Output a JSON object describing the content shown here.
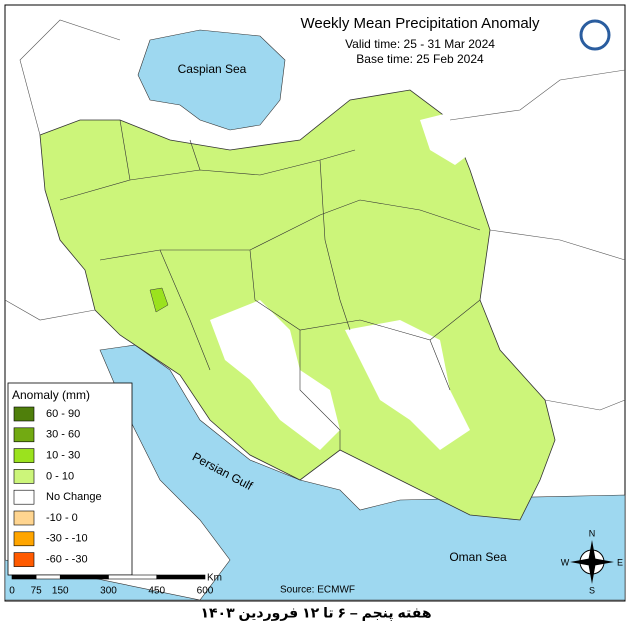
{
  "header": {
    "title": "Weekly Mean Precipitation Anomaly",
    "valid_time": "Valid time:  25 - 31 Mar 2024",
    "base_time": "Base time: 25 Feb 2024"
  },
  "map": {
    "labels": [
      "Caspian Sea",
      "Persian Gulf",
      "Oman Sea"
    ]
  },
  "legend": {
    "title": "Anomaly (mm)",
    "items": [
      {
        "label": "60 - 90",
        "color": "#4f7f0b"
      },
      {
        "label": "30 - 60",
        "color": "#72aa12"
      },
      {
        "label": "10 - 30",
        "color": "#9be21e"
      },
      {
        "label": "0 - 10",
        "color": "#ccf57a"
      },
      {
        "label": "No Change",
        "color": "#ffffff"
      },
      {
        "label": "-10 - 0",
        "color": "#ffd590"
      },
      {
        "label": "-30 - -10",
        "color": "#ffa500"
      },
      {
        "label": "-60 - -30",
        "color": "#ff5a00"
      }
    ]
  },
  "scale_bar": {
    "ticks": [
      0,
      75,
      150,
      300,
      450,
      600
    ],
    "unit": "Km"
  },
  "compass": [
    "N",
    "E",
    "S",
    "W"
  ],
  "source": "Source: ECMWF",
  "footer": "هفته پنجم – ۶ تا ۱۲ فروردین ۱۴۰۳"
}
